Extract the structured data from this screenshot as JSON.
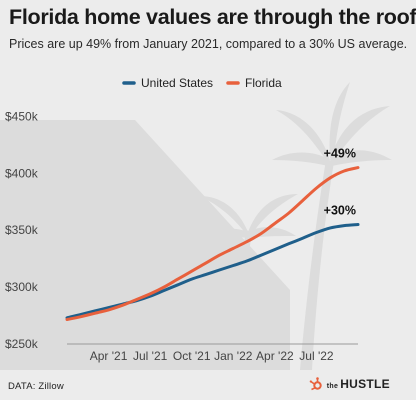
{
  "header": {
    "title": "Florida home values are through the roof",
    "subtitle": "Prices are up 49% from January 2021, compared to a 30% US average."
  },
  "footer": {
    "source": "DATA: Zillow",
    "brand_prefix": "the",
    "brand_name": "HUSTLE"
  },
  "colors": {
    "united_states": "#1f5f8b",
    "florida": "#e8603c",
    "background": "#ececec",
    "decor": "#dcdcdc"
  },
  "chart_data": {
    "type": "line",
    "title": "Florida home values are through the roof",
    "subtitle": "Prices are up 49% from January 2021, compared to a 30% US average.",
    "xlabel": "",
    "ylabel": "",
    "x": [
      "2021-01",
      "2021-02",
      "2021-03",
      "2021-04",
      "2021-05",
      "2021-06",
      "2021-07",
      "2021-08",
      "2021-09",
      "2021-10",
      "2021-11",
      "2021-12",
      "2022-01",
      "2022-02",
      "2022-03",
      "2022-04",
      "2022-05",
      "2022-06",
      "2022-07",
      "2022-08",
      "2022-09",
      "2022-10"
    ],
    "x_tick_labels": [
      "Apr '21",
      "Jul '21",
      "Oct '21",
      "Jan '22",
      "Apr '22",
      "Jul '22"
    ],
    "x_tick_dates": [
      "2021-04",
      "2021-07",
      "2021-10",
      "2022-01",
      "2022-04",
      "2022-07"
    ],
    "y_tick_labels": [
      "$250k",
      "$300k",
      "$350k",
      "$400k",
      "$450k"
    ],
    "y_tick_values": [
      250000,
      300000,
      350000,
      400000,
      450000
    ],
    "ylim": [
      250000,
      460000
    ],
    "grid": false,
    "legend_position": "top-center",
    "series": [
      {
        "name": "United States",
        "color": "#1f5f8b",
        "values": [
          273000,
          276000,
          279000,
          282000,
          285000,
          288000,
          292000,
          297000,
          302000,
          307000,
          311000,
          315000,
          319000,
          323000,
          328000,
          333000,
          338000,
          343000,
          348000,
          352000,
          354000,
          355000
        ],
        "end_label": "+30%"
      },
      {
        "name": "Florida",
        "color": "#e8603c",
        "values": [
          271500,
          274000,
          277000,
          280000,
          284000,
          289000,
          294000,
          300000,
          307000,
          314000,
          321000,
          328000,
          334000,
          340000,
          347000,
          356000,
          365000,
          376000,
          387000,
          396000,
          402000,
          405000
        ],
        "end_label": "+49%"
      }
    ]
  }
}
